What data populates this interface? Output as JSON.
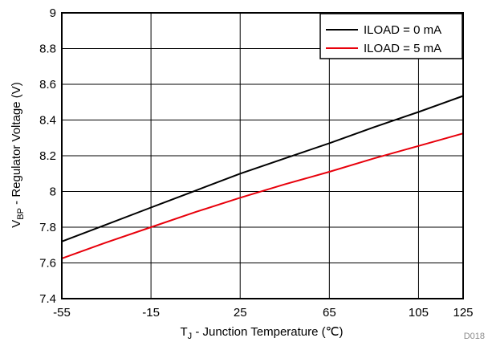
{
  "chart_data": {
    "type": "line",
    "xlabel_main": "T",
    "xlabel_sub": "J",
    "xlabel_rest": " - Junction Temperature (℃)",
    "ylabel_main": "V",
    "ylabel_sub": "BP",
    "ylabel_rest": " - Regulator Voltage (V)",
    "xlim": [
      -55,
      125
    ],
    "ylim": [
      7.4,
      9.0
    ],
    "xticks": [
      -55,
      -15,
      25,
      65,
      105,
      125
    ],
    "yticks": [
      7.4,
      7.6,
      7.8,
      8.0,
      8.2,
      8.4,
      8.6,
      8.8,
      9.0
    ],
    "xtick_labels": [
      "-55",
      "-15",
      "25",
      "65",
      "105",
      "125"
    ],
    "ytick_labels": [
      "7.4",
      "7.6",
      "7.8",
      "8",
      "8.2",
      "8.4",
      "8.6",
      "8.8",
      "9"
    ],
    "grid": true,
    "legend_position": "top-right",
    "series": [
      {
        "name": "ILOAD = 0 mA",
        "color": "#000000",
        "x": [
          -55,
          -35,
          -15,
          5,
          25,
          45,
          65,
          85,
          105,
          125
        ],
        "y": [
          7.72,
          7.815,
          7.91,
          8.005,
          8.1,
          8.185,
          8.27,
          8.36,
          8.445,
          8.535
        ]
      },
      {
        "name": "ILOAD = 5 mA",
        "color": "#e8000b",
        "x": [
          -55,
          -35,
          -15,
          5,
          25,
          45,
          65,
          85,
          105,
          125
        ],
        "y": [
          7.625,
          7.715,
          7.8,
          7.885,
          7.965,
          8.04,
          8.11,
          8.185,
          8.255,
          8.325
        ]
      }
    ]
  },
  "figure_code": "D018"
}
